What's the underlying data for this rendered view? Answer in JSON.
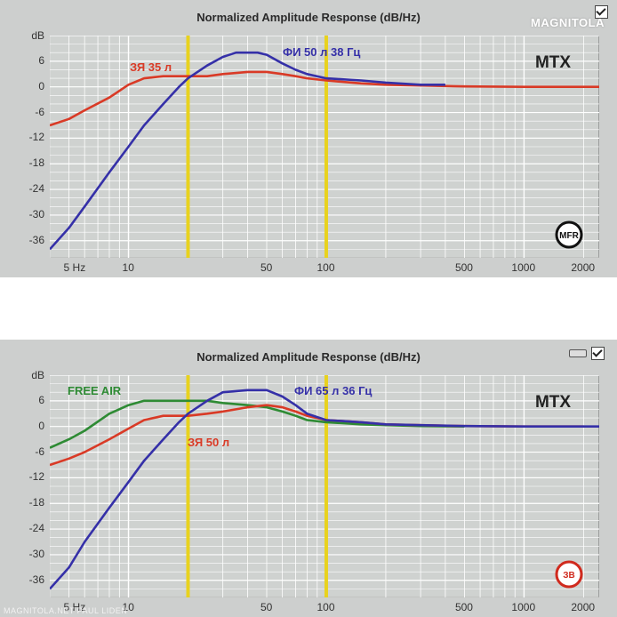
{
  "logo": "MAGNITOLA",
  "bottom_note": "MAGNITOLA.NET PAUL LIDEN",
  "chart_data": [
    {
      "type": "line",
      "title": "Normalized Amplitude Response (dB/Hz)",
      "brand": "MTX",
      "badge": "MFR",
      "x_scale": "log",
      "xlim": [
        4,
        2400
      ],
      "ylim": [
        -40,
        12
      ],
      "xticks": [
        5,
        10,
        50,
        100,
        500,
        1000,
        2000
      ],
      "xtick_labels": [
        "5 Hz",
        "10",
        "50",
        "100",
        "500",
        "1000",
        "2000"
      ],
      "yticks": [
        6,
        0,
        -6,
        -12,
        -18,
        -24,
        -30,
        -36
      ],
      "ytick_labels": [
        "6",
        "0",
        "-6",
        "-12",
        "-18",
        "-24",
        "-30",
        "-36"
      ],
      "yunit_label": "dB",
      "grid": true,
      "highlight_x_range": [
        20,
        100
      ],
      "series": [
        {
          "name": "ЗЯ 35 л",
          "color": "#d93a26",
          "x": [
            4,
            5,
            6,
            8,
            10,
            12,
            15,
            18,
            20,
            25,
            30,
            40,
            50,
            60,
            70,
            80,
            100,
            150,
            200,
            300,
            500,
            1000,
            2000,
            2400
          ],
          "y": [
            -9,
            -7.5,
            -5.5,
            -2.5,
            0.5,
            2,
            2.5,
            2.5,
            2.5,
            2.5,
            3,
            3.5,
            3.5,
            3,
            2.5,
            2,
            1.5,
            0.8,
            0.5,
            0.3,
            0.1,
            0,
            0,
            0
          ]
        },
        {
          "name": "ФИ 50 л 38 Гц",
          "color": "#3530a8",
          "x": [
            4,
            5,
            6,
            8,
            10,
            12,
            15,
            18,
            20,
            25,
            30,
            35,
            40,
            45,
            50,
            60,
            70,
            80,
            100,
            150,
            200,
            300,
            400
          ],
          "y": [
            -38,
            -33,
            -28,
            -20,
            -14,
            -9,
            -4,
            0,
            2,
            5,
            7,
            8,
            8,
            8,
            7.5,
            5.5,
            4,
            3,
            2,
            1.5,
            1,
            0.5,
            0.5
          ]
        }
      ],
      "annotations": [
        "ЗЯ 35 л",
        "ФИ 50 л 38 Гц"
      ]
    },
    {
      "type": "line",
      "title": "Normalized Amplitude Response (dB/Hz)",
      "brand": "MTX",
      "badge": "ЗВ",
      "x_scale": "log",
      "xlim": [
        4,
        2400
      ],
      "ylim": [
        -40,
        12
      ],
      "xticks": [
        5,
        10,
        50,
        100,
        500,
        1000,
        2000
      ],
      "xtick_labels": [
        "5 Hz",
        "10",
        "50",
        "100",
        "500",
        "1000",
        "2000"
      ],
      "yticks": [
        6,
        0,
        -6,
        -12,
        -18,
        -24,
        -30,
        -36
      ],
      "ytick_labels": [
        "6",
        "0",
        "-6",
        "-12",
        "-18",
        "-24",
        "-30",
        "-36"
      ],
      "yunit_label": "dB",
      "grid": true,
      "highlight_x_range": [
        20,
        100
      ],
      "series": [
        {
          "name": "FREE AIR",
          "color": "#2e8b34",
          "x": [
            4,
            5,
            6,
            8,
            10,
            12,
            15,
            20,
            25,
            30,
            40,
            50,
            60,
            70,
            80,
            100,
            150,
            200,
            300,
            500
          ],
          "y": [
            -5,
            -3,
            -1,
            3,
            5,
            6,
            6,
            6,
            6,
            5.5,
            5,
            4.5,
            3.5,
            2.5,
            1.5,
            1,
            0.5,
            0.3,
            0.1,
            0
          ]
        },
        {
          "name": "ЗЯ 50 л",
          "color": "#d93a26",
          "x": [
            4,
            5,
            6,
            8,
            10,
            12,
            15,
            20,
            25,
            30,
            40,
            50,
            60,
            70,
            80,
            100,
            150,
            200,
            300,
            500,
            1000,
            2000
          ],
          "y": [
            -9,
            -7.5,
            -6,
            -3,
            -0.5,
            1.5,
            2.5,
            2.5,
            3,
            3.5,
            4.5,
            5,
            4.5,
            3.5,
            2.5,
            1.5,
            1,
            0.5,
            0.3,
            0.1,
            0,
            0
          ]
        },
        {
          "name": "ФИ 65 л 36 Гц",
          "color": "#3530a8",
          "x": [
            4,
            5,
            6,
            8,
            10,
            12,
            15,
            18,
            20,
            25,
            30,
            40,
            50,
            60,
            70,
            80,
            100,
            150,
            200,
            300,
            500,
            1000,
            2000,
            2400
          ],
          "y": [
            -38,
            -33,
            -27,
            -19,
            -13,
            -8,
            -3,
            1,
            3,
            6,
            8,
            8.5,
            8.5,
            7,
            5,
            3,
            1.5,
            1,
            0.5,
            0.3,
            0.1,
            0,
            0,
            0
          ]
        }
      ],
      "annotations": [
        "FREE AIR",
        "ЗЯ 50 л",
        "ФИ 65 л 36 Гц"
      ]
    }
  ]
}
